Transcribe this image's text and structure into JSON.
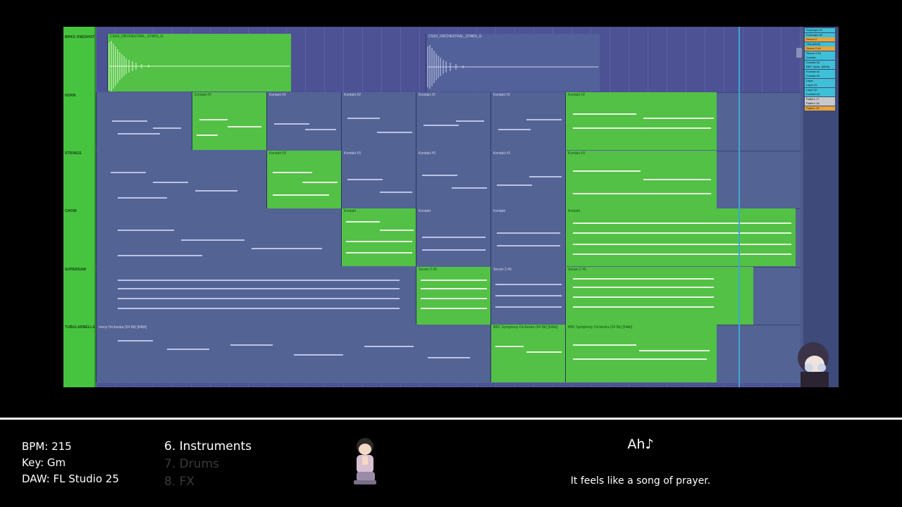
{
  "daw_view": {
    "tracks": [
      {
        "name": "BRKS ONESHOT"
      },
      {
        "name": "HORN"
      },
      {
        "name": "STRINGS"
      },
      {
        "name": "CHOIR"
      },
      {
        "name": "SUPERSAW"
      },
      {
        "name": "TUBULARBELLS"
      }
    ],
    "clips": {
      "oneshot_a": "CSS4_ORCHESTRAL_STABS_G",
      "oneshot_b": "CSS4_ORCHESTRAL_STABS_G",
      "horn": "Kontakt #2",
      "strings": "Kontakt #3",
      "choir": "Kontakt",
      "supersaw": "Serum 2 #5",
      "bells_gray": "mony Orchestra (64 Bit) [64bit]",
      "bells_green": "BBC Symphony Orchestra (64 Bit) [64bit]"
    },
    "patterns": [
      {
        "label": "Keyscape #1",
        "color": "#3fc0d8"
      },
      {
        "label": "Keyscape #2",
        "color": "#3fc0d8"
      },
      {
        "label": "Serum 2",
        "color": "#e8a43a"
      },
      {
        "label": "Vital [64bit]",
        "color": "#3fc0d8"
      },
      {
        "label": "Serum 2 #4",
        "color": "#e8a43a"
      },
      {
        "label": "Serum 2 #5",
        "color": "#3fc0d8"
      },
      {
        "label": "Kontakt",
        "color": "#3fc0d8"
      },
      {
        "label": "Kontakt #5",
        "color": "#3fc0d8"
      },
      {
        "label": "BBC Symp. [64bit]",
        "color": "#3fc0d8"
      },
      {
        "label": "Kontakt #2",
        "color": "#3fc0d8"
      },
      {
        "label": "Kontakt #3",
        "color": "#3fc0d8"
      },
      {
        "label": "Layer",
        "color": "#3fc0d8"
      },
      {
        "label": "Layer #1",
        "color": "#3fc0d8"
      },
      {
        "label": "Layer #2",
        "color": "#3fc0d8"
      },
      {
        "label": "Kontakt #4",
        "color": "#3fc0d8"
      },
      {
        "label": "Pattern 17",
        "color": "#c8c8c8"
      },
      {
        "label": "Pattern 18",
        "color": "#c8c8c8"
      },
      {
        "label": "Pattern 19",
        "color": "#e8a43a"
      }
    ]
  },
  "info": {
    "bpm": "BPM: 215",
    "key": "Key:  Gm",
    "daw": "DAW: FL Studio 25"
  },
  "sections": [
    {
      "label": "6. Instruments",
      "active": true
    },
    {
      "label": "7. Drums",
      "active": false
    },
    {
      "label": "8. FX",
      "active": false
    }
  ],
  "lyrics": {
    "line1": "Ah♪",
    "line2": "It feels like a song of prayer."
  },
  "colors": {
    "clip_green": "#52c145",
    "clip_gray": "#536394",
    "playlist_bg": "#4f5b8c",
    "playhead": "#3aa7d7"
  }
}
